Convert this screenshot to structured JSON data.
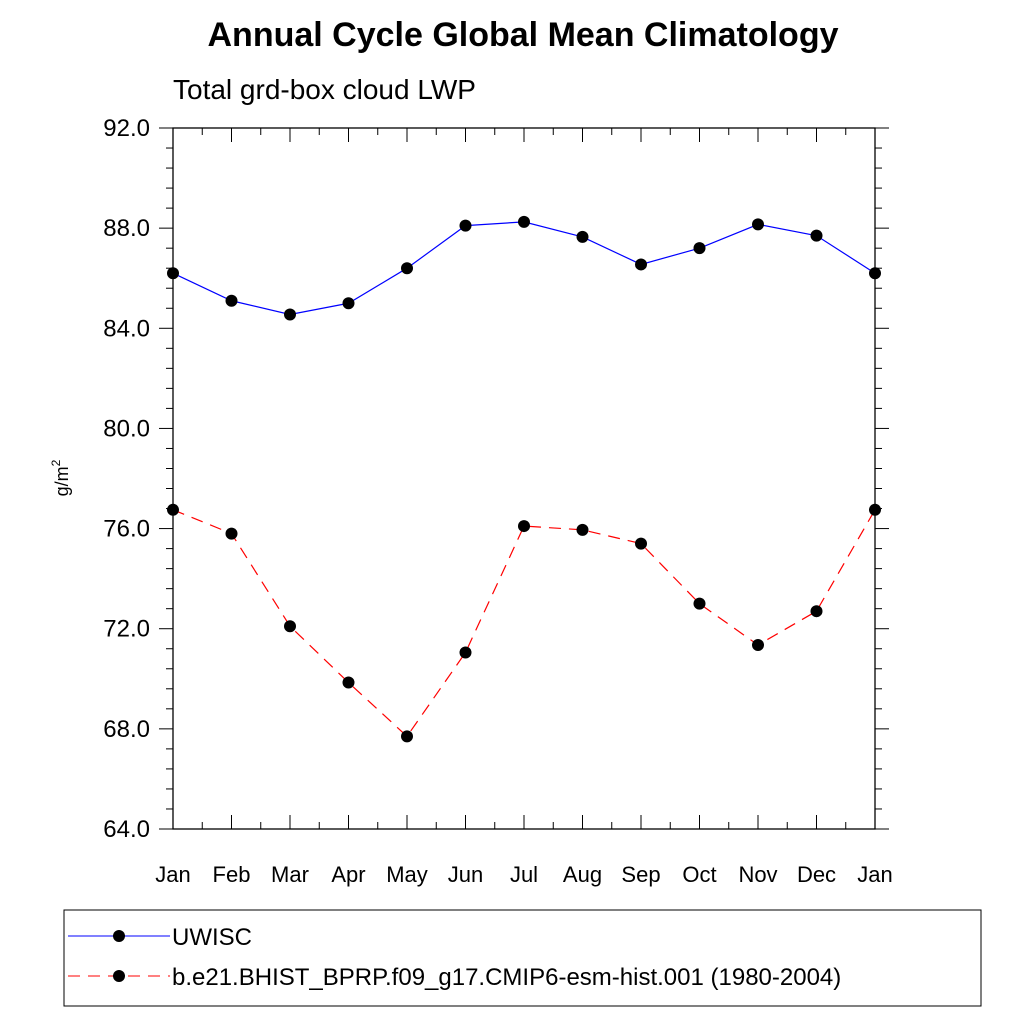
{
  "chart_data": {
    "type": "line",
    "title": "Annual Cycle Global Mean Climatology",
    "subtitle": "Total grd-box cloud LWP",
    "ylabel_base": "g/m",
    "ylabel_sup": "2",
    "xlabel": "",
    "categories": [
      "Jan",
      "Feb",
      "Mar",
      "Apr",
      "May",
      "Jun",
      "Jul",
      "Aug",
      "Sep",
      "Oct",
      "Nov",
      "Dec",
      "Jan"
    ],
    "ylim": [
      64.0,
      92.0
    ],
    "yticks": [
      "64.0",
      "68.0",
      "72.0",
      "76.0",
      "80.0",
      "84.0",
      "88.0",
      "92.0"
    ],
    "ytick_values": [
      64,
      68,
      72,
      76,
      80,
      84,
      88,
      92
    ],
    "series": [
      {
        "name": "UWISC",
        "color": "#0000ff",
        "dash": "solid",
        "values": [
          86.2,
          85.1,
          84.55,
          85.0,
          86.4,
          88.1,
          88.25,
          87.65,
          86.55,
          87.2,
          88.15,
          87.7,
          86.2
        ]
      },
      {
        "name": "b.e21.BHIST_BPRP.f09_g17.CMIP6-esm-hist.001 (1980-2004)",
        "color": "#ff0000",
        "dash": "dashed",
        "values": [
          76.75,
          75.8,
          72.1,
          69.85,
          67.7,
          71.05,
          76.1,
          75.95,
          75.4,
          73.0,
          71.35,
          72.7,
          76.75
        ]
      }
    ],
    "grid": false,
    "legend_position": "bottom"
  }
}
